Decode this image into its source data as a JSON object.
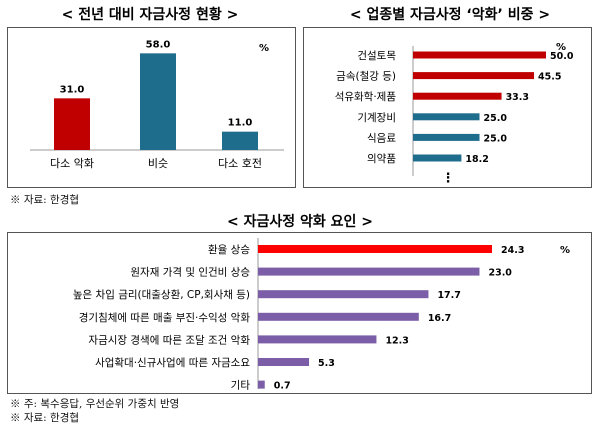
{
  "chart_data": [
    {
      "type": "bar",
      "title": "< 전년 대비 자금사정 현황 >",
      "unit": "%",
      "categories": [
        "다소 악화",
        "비슷",
        "다소 호전"
      ],
      "values": [
        31.0,
        58.0,
        11.0
      ],
      "value_labels": [
        "31.0",
        "58.0",
        "11.0"
      ],
      "colors": [
        "#c00000",
        "#1f6d8c",
        "#1f6d8c"
      ]
    },
    {
      "type": "bar",
      "orientation": "horizontal",
      "title": "< 업종별 자금사정 ‘악화’ 비중 >",
      "unit": "%",
      "categories": [
        "건설토목",
        "금속(철강 등)",
        "석유화학·제품",
        "기계장비",
        "식음료",
        "의약품"
      ],
      "values": [
        50.0,
        45.5,
        33.3,
        25.0,
        25.0,
        18.2
      ],
      "value_labels": [
        "50.0",
        "45.5",
        "33.3",
        "25.0",
        "25.0",
        "18.2"
      ],
      "colors": [
        "#c00000",
        "#c00000",
        "#c00000",
        "#1f6d8c",
        "#1f6d8c",
        "#1f6d8c"
      ],
      "continuation": "⋮"
    },
    {
      "type": "bar",
      "orientation": "horizontal",
      "title": "< 자금사정 악화 요인 >",
      "unit": "%",
      "categories": [
        "환율 상승",
        "원자재 가격 및 인건비 상승",
        "높은 차입 금리(대출상환, CP,회사채 등)",
        "경기침체에 따른 매출 부진·수익성 악화",
        "자금시장 경색에 따른 조달 조건 악화",
        "사업확대·신규사업에 따른 자금소요",
        "기타"
      ],
      "values": [
        24.3,
        23.0,
        17.7,
        16.7,
        12.3,
        5.3,
        0.7
      ],
      "value_labels": [
        "24.3",
        "23.0",
        "17.7",
        "16.7",
        "12.3",
        "5.3",
        "0.7"
      ],
      "colors": [
        "#ff0000",
        "#7b5ea7",
        "#7b5ea7",
        "#7b5ea7",
        "#7b5ea7",
        "#7b5ea7",
        "#7b5ea7"
      ]
    }
  ],
  "notes": {
    "source_top": "※ 자료: 한경협",
    "note_bottom": "※ 주: 복수응답, 우선순위 가중치 반영",
    "source_bottom": "※ 자료: 한경협"
  }
}
